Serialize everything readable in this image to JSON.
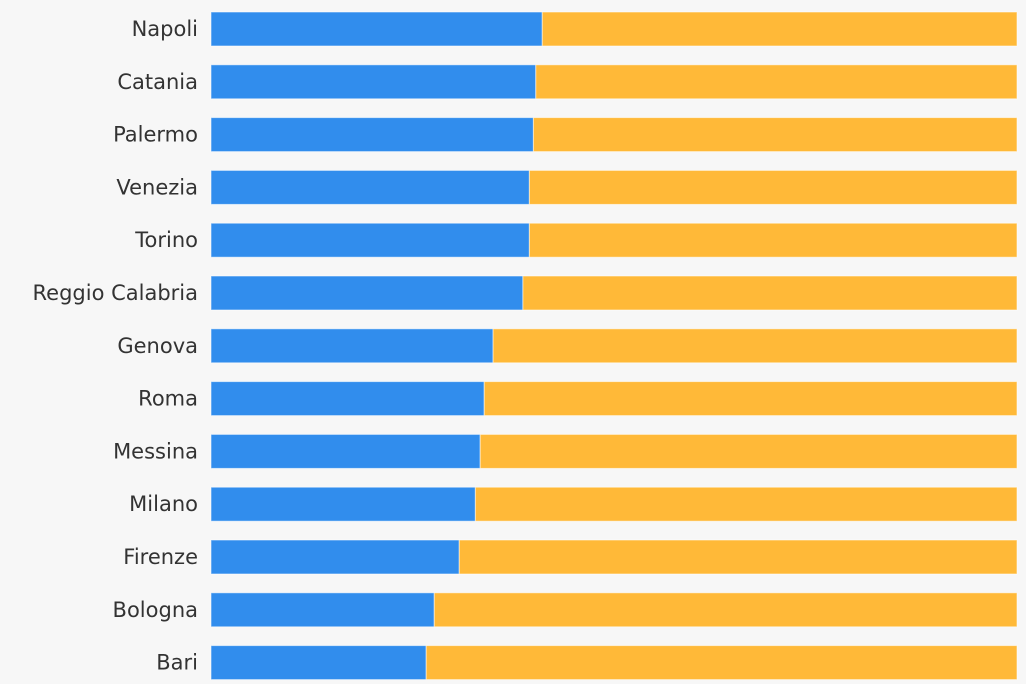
{
  "colors": {
    "background": "#f7f7f7",
    "label": "#333333"
  },
  "chart_data": {
    "type": "bar",
    "orientation": "horizontal",
    "stacked": "percent",
    "title": "",
    "xlabel": "",
    "ylabel": "",
    "legend": "none",
    "grid": false,
    "xlim": [
      0,
      100
    ],
    "categories": [
      "Napoli",
      "Catania",
      "Palermo",
      "Venezia",
      "Torino",
      "Reggio Calabria",
      "Genova",
      "Roma",
      "Messina",
      "Milano",
      "Firenze",
      "Bologna",
      "Bari"
    ],
    "series": [
      {
        "color": "#318ded",
        "values": [
          41.1,
          40.3,
          40.0,
          39.5,
          39.5,
          38.7,
          35.0,
          33.9,
          33.4,
          32.8,
          30.8,
          27.7,
          26.7
        ]
      },
      {
        "color": "#ffb938",
        "values": [
          58.9,
          59.7,
          60.0,
          60.5,
          60.5,
          61.3,
          65.0,
          66.1,
          66.6,
          67.2,
          69.2,
          72.3,
          73.3
        ]
      }
    ]
  }
}
